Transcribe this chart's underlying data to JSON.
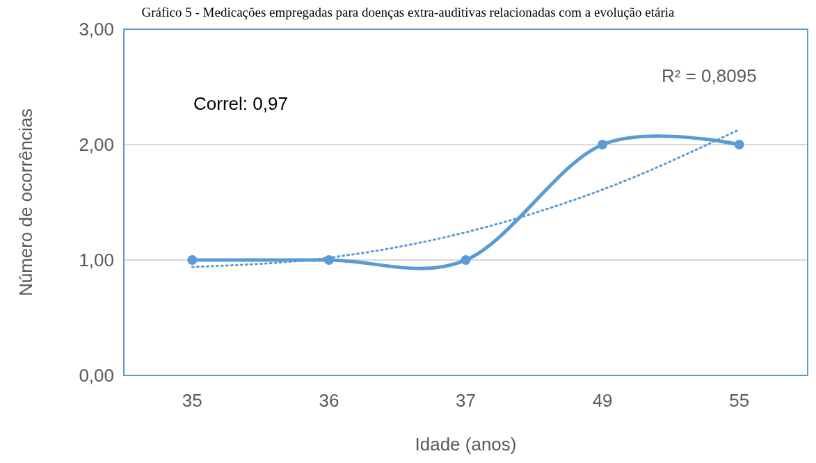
{
  "chart_data": {
    "type": "line",
    "title": "Gráfico 5 - Medicações empregadas para doenças extra-auditivas relacionadas com a evolução etária",
    "xlabel": "Idade (anos)",
    "ylabel": "Número de ocorrências",
    "categories": [
      "35",
      "36",
      "37",
      "49",
      "55"
    ],
    "series": [
      {
        "color": "#5b9bd5",
        "values": [
          1,
          1,
          1,
          2,
          2
        ],
        "marker": "circle",
        "line_style": "solid"
      },
      {
        "color": "#5b9bd5",
        "values": [
          0.94,
          1.02,
          1.24,
          1.61,
          2.13
        ],
        "marker": "none",
        "line_style": "dotted"
      }
    ],
    "ylim": [
      0,
      3
    ],
    "yticks": [
      {
        "value": 0,
        "label": "0,00"
      },
      {
        "value": 1,
        "label": "1,00"
      },
      {
        "value": 2,
        "label": "2,00"
      },
      {
        "value": 3,
        "label": "3,00"
      }
    ],
    "grid": "y",
    "annotations": [
      "Correl: 0,97",
      "R² = 0,8095"
    ]
  }
}
